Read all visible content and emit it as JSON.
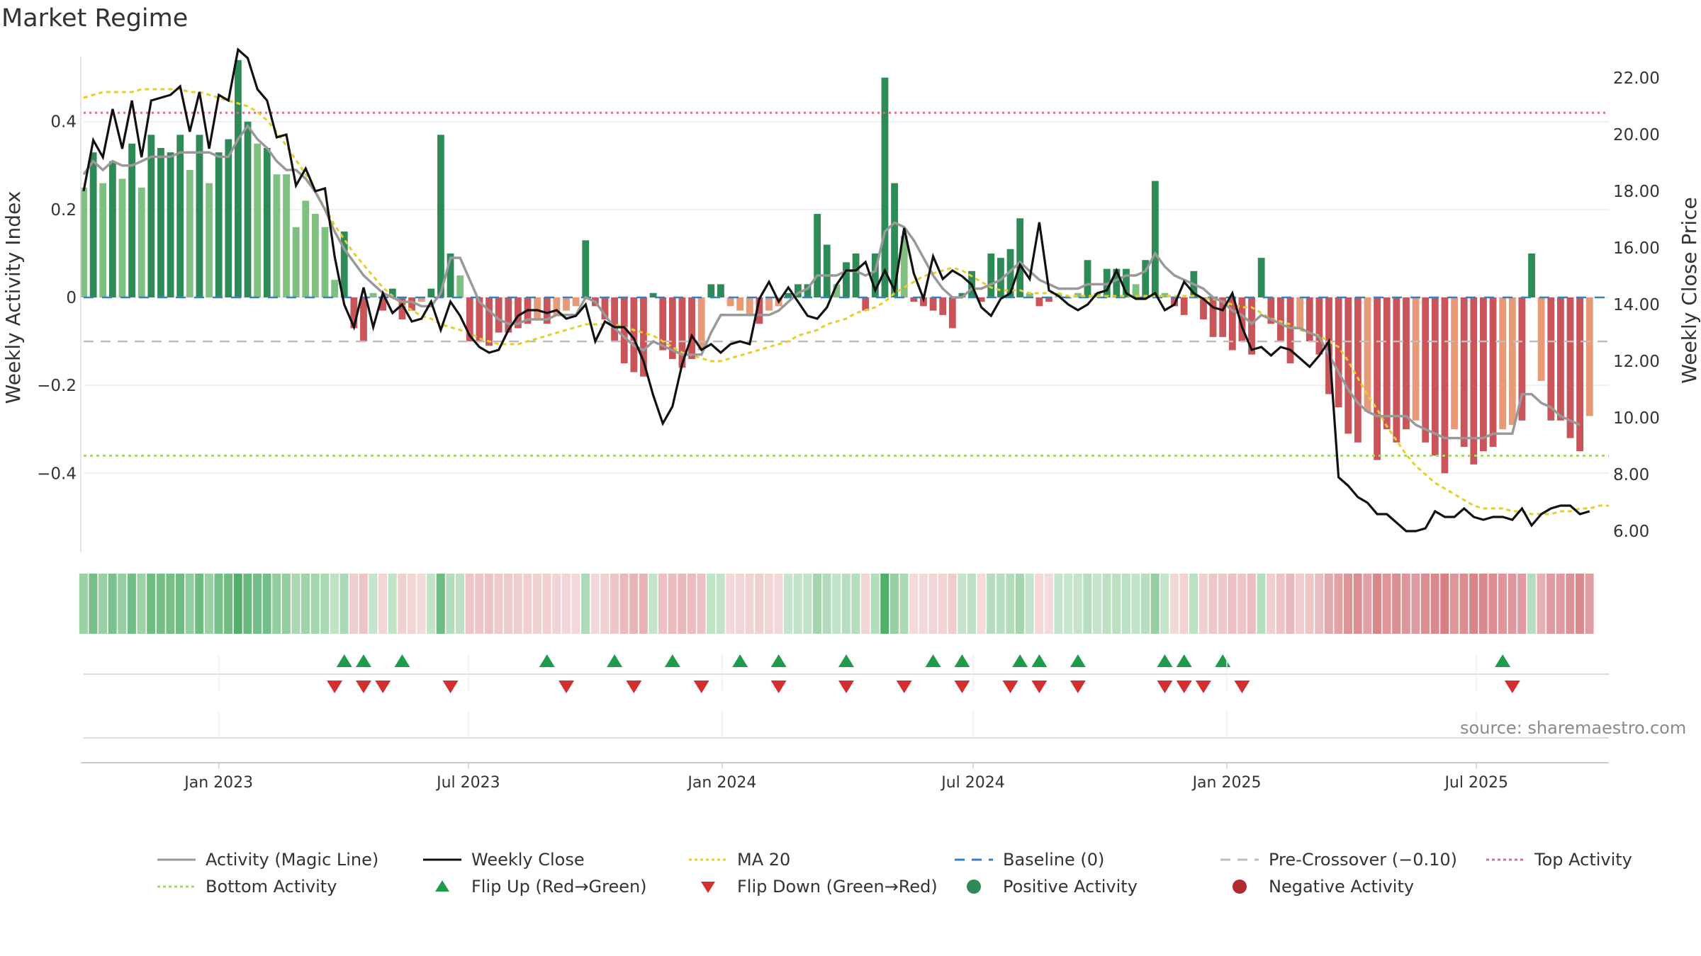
{
  "title": "Market Regime",
  "source": "source: sharemaestro.com",
  "colors": {
    "pos_strong": "#2e8b57",
    "pos_light": "#7fbf7f",
    "neg_strong": "#c9545a",
    "neg_light": "#e89a78",
    "close": "#111111",
    "magic": "#999999",
    "ma": "#e6cf2a",
    "baseline": "#3a7fbf",
    "pre": "#bdbdbd",
    "top": "#d96b8a",
    "bottom": "#a6d96a",
    "flip_up": "#1e9b4b",
    "flip_down": "#d32f2f"
  },
  "chart_data": {
    "type": "bar",
    "title": "Market Regime",
    "ylabel_left": "Weekly Activity Index",
    "ylabel_right": "Weekly Close Price",
    "x_tick_labels": [
      "Jan 2023",
      "Jul 2023",
      "Jan 2024",
      "Jul 2024",
      "Jan 2025",
      "Jul 2025"
    ],
    "x_ticks": [
      "2023-01-01",
      "2023-07-01",
      "2024-01-01",
      "2024-07-01",
      "2025-01-01",
      "2025-07-01"
    ],
    "x_range": [
      "2022-09-25",
      "2025-10-05"
    ],
    "left_axis": {
      "ylim": [
        -0.58,
        0.58
      ],
      "ticks": [
        0.4,
        0.2,
        0,
        -0.2,
        -0.4
      ],
      "tick_labels": [
        "0.4",
        "0.2",
        "0",
        "−0.2",
        "−0.4"
      ]
    },
    "right_axis": {
      "ylim": [
        5.25,
        23.25
      ],
      "ticks": [
        22,
        20,
        18,
        16,
        14,
        12,
        10,
        8,
        6
      ],
      "tick_labels": [
        "22.00",
        "20.00",
        "18.00",
        "16.00",
        "14.00",
        "12.00",
        "10.00",
        "8.00",
        "6.00"
      ]
    },
    "reference_lines": {
      "baseline": 0,
      "pre_crossover": -0.1,
      "top_activity": 0.42,
      "bottom_activity": -0.36
    },
    "start_week": "2022-09-25",
    "activity": [
      0.25,
      0.33,
      0.26,
      0.31,
      0.27,
      0.35,
      0.25,
      0.37,
      0.34,
      0.33,
      0.37,
      0.29,
      0.37,
      0.26,
      0.33,
      0.36,
      0.54,
      0.4,
      0.35,
      0.34,
      0.28,
      0.28,
      0.16,
      0.22,
      0.19,
      0.16,
      0.04,
      0.15,
      -0.07,
      -0.1,
      0.01,
      -0.03,
      0.02,
      -0.05,
      -0.03,
      -0.01,
      0.02,
      0.37,
      0.1,
      0.05,
      -0.1,
      -0.1,
      -0.11,
      -0.08,
      -0.08,
      -0.07,
      -0.06,
      -0.05,
      -0.06,
      -0.04,
      -0.03,
      -0.02,
      0.13,
      -0.02,
      -0.05,
      -0.1,
      -0.15,
      -0.17,
      -0.18,
      0.01,
      -0.12,
      -0.14,
      -0.16,
      -0.14,
      -0.12,
      0.03,
      0.03,
      -0.02,
      -0.03,
      -0.04,
      -0.06,
      -0.03,
      -0.02,
      0.01,
      0.03,
      0.03,
      0.19,
      0.12,
      0.03,
      0.08,
      0.1,
      -0.03,
      0.1,
      0.5,
      0.26,
      0.14,
      -0.01,
      -0.02,
      -0.03,
      -0.04,
      -0.07,
      0.01,
      0.06,
      -0.01,
      0.1,
      0.09,
      0.11,
      0.18,
      0.01,
      -0.02,
      -0.01,
      0.01,
      0.0,
      0.01,
      0.085,
      0.01,
      0.065,
      0.065,
      0.065,
      0.03,
      0.085,
      0.265,
      0.01,
      -0.02,
      -0.04,
      0.06,
      -0.05,
      -0.09,
      -0.09,
      -0.12,
      -0.1,
      -0.13,
      0.09,
      -0.06,
      -0.1,
      -0.15,
      -0.07,
      -0.1,
      -0.13,
      -0.22,
      -0.25,
      -0.31,
      -0.33,
      -0.26,
      -0.37,
      -0.3,
      -0.33,
      -0.3,
      -0.28,
      -0.33,
      -0.36,
      -0.4,
      -0.3,
      -0.34,
      -0.38,
      -0.35,
      -0.34,
      -0.3,
      -0.29,
      -0.28,
      0.1,
      -0.19,
      -0.28,
      -0.28,
      -0.32,
      -0.35,
      -0.27
    ],
    "magic_line": [
      0.28,
      0.31,
      0.29,
      0.31,
      0.3,
      0.3,
      0.31,
      0.32,
      0.32,
      0.32,
      0.33,
      0.33,
      0.33,
      0.33,
      0.32,
      0.32,
      0.36,
      0.39,
      0.36,
      0.34,
      0.31,
      0.29,
      0.29,
      0.27,
      0.24,
      0.2,
      0.15,
      0.11,
      0.08,
      0.05,
      0.03,
      0.01,
      0.0,
      -0.01,
      -0.01,
      -0.02,
      -0.02,
      0.01,
      0.09,
      0.09,
      0.04,
      -0.01,
      -0.03,
      -0.05,
      -0.06,
      -0.06,
      -0.05,
      -0.05,
      -0.05,
      -0.04,
      -0.04,
      -0.04,
      0.0,
      -0.01,
      -0.04,
      -0.07,
      -0.09,
      -0.11,
      -0.12,
      -0.1,
      -0.11,
      -0.12,
      -0.13,
      -0.13,
      -0.13,
      -0.08,
      -0.04,
      -0.04,
      -0.04,
      -0.04,
      -0.04,
      -0.04,
      -0.03,
      -0.01,
      0.01,
      0.02,
      0.05,
      0.05,
      0.05,
      0.06,
      0.06,
      0.05,
      0.06,
      0.15,
      0.17,
      0.16,
      0.13,
      0.09,
      0.05,
      0.02,
      0.0,
      0.0,
      0.02,
      0.02,
      0.03,
      0.04,
      0.06,
      0.08,
      0.06,
      0.04,
      0.03,
      0.02,
      0.02,
      0.02,
      0.03,
      0.03,
      0.03,
      0.04,
      0.05,
      0.05,
      0.06,
      0.1,
      0.07,
      0.05,
      0.04,
      0.03,
      0.02,
      0.0,
      -0.01,
      -0.03,
      -0.04,
      -0.06,
      -0.04,
      -0.05,
      -0.06,
      -0.07,
      -0.07,
      -0.08,
      -0.09,
      -0.13,
      -0.17,
      -0.21,
      -0.24,
      -0.26,
      -0.27,
      -0.27,
      -0.27,
      -0.27,
      -0.29,
      -0.3,
      -0.31,
      -0.32,
      -0.32,
      -0.32,
      -0.32,
      -0.32,
      -0.31,
      -0.31,
      -0.31,
      -0.22,
      -0.22,
      -0.24,
      -0.25,
      -0.27,
      -0.28,
      -0.29
    ],
    "weekly_close": [
      18.0,
      19.8,
      19.2,
      20.9,
      19.5,
      21.2,
      19.2,
      21.2,
      21.3,
      21.4,
      21.7,
      20.1,
      21.5,
      19.5,
      21.4,
      21.2,
      23.0,
      22.7,
      21.6,
      21.2,
      19.9,
      20.0,
      18.2,
      18.8,
      18.0,
      18.1,
      15.7,
      14.0,
      13.2,
      14.6,
      13.2,
      14.4,
      13.7,
      14.0,
      13.4,
      13.5,
      14.1,
      13.1,
      14.1,
      13.6,
      12.9,
      12.5,
      12.3,
      12.4,
      13.1,
      13.6,
      13.8,
      13.8,
      13.7,
      13.8,
      13.5,
      13.6,
      14.0,
      12.7,
      13.4,
      13.2,
      13.2,
      12.8,
      12.0,
      10.8,
      9.8,
      10.4,
      11.9,
      12.9,
      12.4,
      12.6,
      12.3,
      12.6,
      12.7,
      12.6,
      14.2,
      14.8,
      14.1,
      14.6,
      14.1,
      13.6,
      13.5,
      13.9,
      14.7,
      15.2,
      15.2,
      15.5,
      14.5,
      15.2,
      14.5,
      16.7,
      15.1,
      14.2,
      15.7,
      14.9,
      15.2,
      15.0,
      14.7,
      13.9,
      13.6,
      14.2,
      14.4,
      15.4,
      14.9,
      16.9,
      14.5,
      14.3,
      14.0,
      13.8,
      14.0,
      14.4,
      14.5,
      15.2,
      14.4,
      14.2,
      14.2,
      14.4,
      13.8,
      14.0,
      14.8,
      14.4,
      14.2,
      13.9,
      13.8,
      14.4,
      13.2,
      12.4,
      12.5,
      12.2,
      12.5,
      12.4,
      12.1,
      11.8,
      12.2,
      12.7,
      7.9,
      7.6,
      7.2,
      7.0,
      6.6,
      6.6,
      6.3,
      6.0,
      6.0,
      6.1,
      6.7,
      6.5,
      6.5,
      6.8,
      6.5,
      6.4,
      6.5,
      6.5,
      6.4,
      6.8,
      6.2,
      6.6,
      6.8,
      6.9,
      6.9,
      6.6,
      6.7
    ],
    "ma20": [
      21.3,
      21.4,
      21.5,
      21.5,
      21.5,
      21.5,
      21.6,
      21.6,
      21.6,
      21.6,
      21.6,
      21.5,
      21.5,
      21.4,
      21.3,
      21.2,
      21.1,
      21.0,
      20.8,
      20.5,
      20.1,
      19.6,
      19.1,
      18.6,
      18.0,
      17.4,
      16.8,
      16.3,
      15.8,
      15.4,
      15.0,
      14.6,
      14.3,
      14.0,
      13.8,
      13.6,
      13.5,
      13.3,
      13.2,
      13.1,
      13.0,
      12.8,
      12.7,
      12.6,
      12.6,
      12.6,
      12.7,
      12.8,
      12.9,
      13.0,
      13.1,
      13.2,
      13.3,
      13.3,
      13.3,
      13.3,
      13.2,
      13.1,
      13.0,
      12.9,
      12.7,
      12.5,
      12.3,
      12.2,
      12.1,
      12.0,
      12.0,
      12.1,
      12.2,
      12.3,
      12.4,
      12.5,
      12.6,
      12.7,
      12.9,
      13.0,
      13.1,
      13.3,
      13.4,
      13.5,
      13.7,
      13.8,
      13.9,
      14.1,
      14.4,
      14.6,
      14.8,
      15.0,
      15.1,
      15.2,
      15.3,
      15.2,
      15.0,
      14.8,
      14.6,
      14.5,
      14.5,
      14.5,
      14.4,
      14.4,
      14.4,
      14.4,
      14.3,
      14.3,
      14.3,
      14.3,
      14.3,
      14.3,
      14.3,
      14.3,
      14.3,
      14.3,
      14.3,
      14.3,
      14.3,
      14.3,
      14.2,
      14.2,
      14.1,
      14.0,
      13.9,
      13.9,
      13.7,
      13.5,
      13.4,
      13.3,
      13.1,
      13.0,
      12.9,
      12.7,
      12.5,
      12.0,
      11.4,
      10.8,
      10.3,
      9.7,
      9.2,
      8.7,
      8.3,
      8.0,
      7.7,
      7.5,
      7.3,
      7.1,
      6.9,
      6.8,
      6.8,
      6.8,
      6.7,
      6.7,
      6.6,
      6.6,
      6.6,
      6.7,
      6.7,
      6.8,
      6.8,
      6.9,
      6.9
    ],
    "flip_up_weeks": [
      27,
      29,
      33,
      48,
      55,
      61,
      68,
      72,
      79,
      88,
      91,
      97,
      99,
      103,
      112,
      114,
      118,
      147
    ],
    "flip_down_weeks": [
      26,
      29,
      31,
      38,
      50,
      57,
      64,
      72,
      79,
      85,
      91,
      96,
      99,
      103,
      112,
      114,
      116,
      120,
      148
    ],
    "series_names": [
      "Activity (Magic Line)",
      "Weekly Close",
      "MA 20",
      "Baseline (0)",
      "Pre-Crossover (−0.10)",
      "Top Activity",
      "Bottom Activity",
      "Flip Up (Red→Green)",
      "Flip Down (Green→Red)",
      "Positive Activity",
      "Negative Activity"
    ]
  },
  "legend": [
    {
      "label": "Activity (Magic Line)",
      "icon": "solid-line-icon",
      "color": "#999999"
    },
    {
      "label": "Weekly Close",
      "icon": "solid-line-icon",
      "color": "#111111"
    },
    {
      "label": "MA 20",
      "icon": "dotted-line-icon",
      "color": "#e6cf2a"
    },
    {
      "label": "Baseline (0)",
      "icon": "dashed-line-icon",
      "color": "#3a7fbf"
    },
    {
      "label": "Pre-Crossover (−0.10)",
      "icon": "dashed-line-icon",
      "color": "#bdbdbd"
    },
    {
      "label": "Top Activity",
      "icon": "dotted-line-icon",
      "color": "#d96b8a"
    },
    {
      "label": "Bottom Activity",
      "icon": "dotted-line-icon",
      "color": "#a6d96a"
    },
    {
      "label": "Flip Up (Red→Green)",
      "icon": "triangle-up-icon",
      "color": "#1e9b4b"
    },
    {
      "label": "Flip Down (Green→Red)",
      "icon": "triangle-down-icon",
      "color": "#d32f2f"
    },
    {
      "label": "Positive Activity",
      "icon": "circle-icon",
      "color": "#2e8b57"
    },
    {
      "label": "Negative Activity",
      "icon": "circle-icon",
      "color": "#b02a2f"
    }
  ]
}
